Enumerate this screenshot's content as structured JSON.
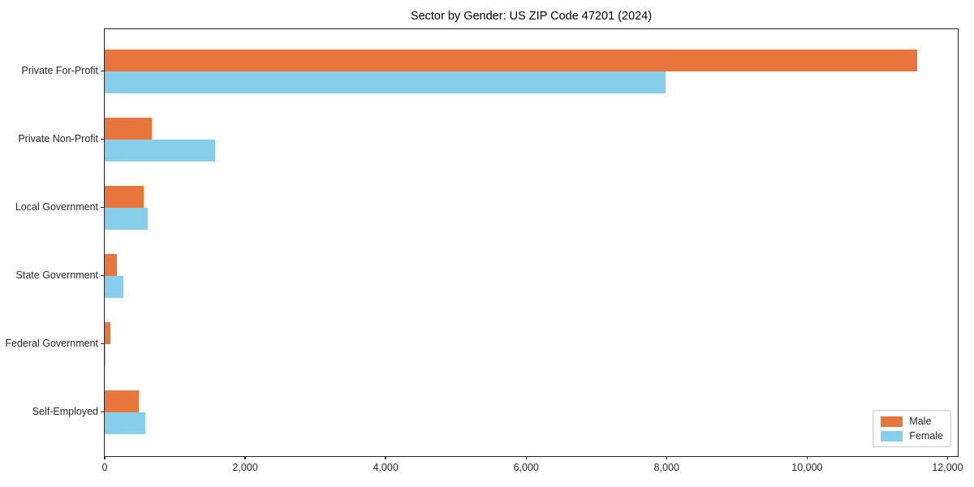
{
  "chart_data": {
    "type": "bar",
    "orientation": "horizontal",
    "title": "Sector by Gender: US ZIP Code 47201 (2024)",
    "xlabel": "",
    "ylabel": "",
    "categories": [
      "Private For-Profit",
      "Private Non-Profit",
      "Local Government",
      "State Government",
      "Federal Government",
      "Self-Employed"
    ],
    "series": [
      {
        "name": "Male",
        "color": "#e8763c",
        "values": [
          11570,
          670,
          560,
          170,
          85,
          490
        ]
      },
      {
        "name": "Female",
        "color": "#87ceeb",
        "values": [
          7980,
          1570,
          615,
          270,
          15,
          575
        ]
      }
    ],
    "xlim": [
      0,
      12145
    ],
    "x_ticks": [
      0,
      2000,
      4000,
      6000,
      8000,
      10000,
      12000
    ],
    "x_tick_labels": [
      "0",
      "2,000",
      "4,000",
      "6,000",
      "8,000",
      "10,000",
      "12,000"
    ],
    "grid": false,
    "legend_position": "lower right",
    "frame": "full-box"
  },
  "legend": {
    "items": [
      {
        "label": "Male",
        "color": "#e8763c"
      },
      {
        "label": "Female",
        "color": "#87ceeb"
      }
    ]
  }
}
